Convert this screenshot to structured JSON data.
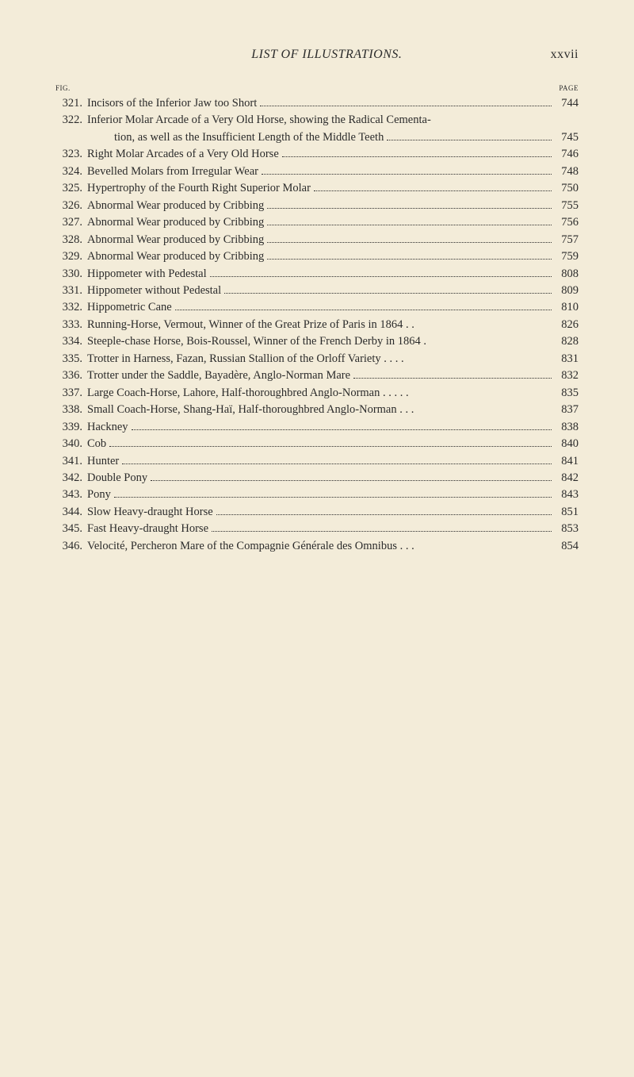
{
  "header": {
    "title": "LIST OF ILLUSTRATIONS.",
    "roman": "xxvii"
  },
  "col": {
    "fig": "FIG.",
    "page": "PAGE"
  },
  "entries": [
    {
      "n": "321.",
      "t": "Incisors of the Inferior Jaw too Short",
      "p": "744"
    },
    {
      "n": "322.",
      "t": "Inferior Molar Arcade of a Very Old Horse, showing the Radical Cementa-",
      "cont": "tion, as well as the Insufficient Length of the Middle Teeth",
      "p": "745"
    },
    {
      "n": "323.",
      "t": "Right Molar Arcades of a Very Old Horse",
      "p": "746"
    },
    {
      "n": "324.",
      "t": "Bevelled Molars from Irregular Wear",
      "p": "748"
    },
    {
      "n": "325.",
      "t": "Hypertrophy of the Fourth Right Superior Molar",
      "p": "750"
    },
    {
      "n": "326.",
      "t": "Abnormal Wear produced by Cribbing",
      "p": "755"
    },
    {
      "n": "327.",
      "t": "Abnormal Wear produced by Cribbing",
      "p": "756"
    },
    {
      "n": "328.",
      "t": "Abnormal Wear produced by Cribbing",
      "p": "757"
    },
    {
      "n": "329.",
      "t": "Abnormal Wear produced by Cribbing",
      "p": "759"
    },
    {
      "n": "330.",
      "t": "Hippometer with Pedestal",
      "p": "808"
    },
    {
      "n": "331.",
      "t": "Hippometer without Pedestal",
      "p": "809"
    },
    {
      "n": "332.",
      "t": "Hippometric Cane",
      "p": "810"
    },
    {
      "n": "333.",
      "t": "Running-Horse, Vermout, Winner of the Great Prize of Paris in 1864 . .",
      "p": "826",
      "nodots": true
    },
    {
      "n": "334.",
      "t": "Steeple-chase Horse, Bois-Roussel, Winner of the French Derby in 1864  .",
      "p": "828",
      "nodots": true
    },
    {
      "n": "335.",
      "t": "Trotter in Harness, Fazan, Russian Stallion of the Orloff Variety  .  .  .  .",
      "p": "831",
      "nodots": true
    },
    {
      "n": "336.",
      "t": "Trotter under the Saddle, Bayadère, Anglo-Norman Mare",
      "p": "832"
    },
    {
      "n": "337.",
      "t": "Large Coach-Horse, Lahore, Half-thoroughbred Anglo-Norman .  .  .  .  .",
      "p": "835",
      "nodots": true
    },
    {
      "n": "338.",
      "t": "Small Coach-Horse, Shang-Haï, Half-thoroughbred Anglo-Norman  .  .  .",
      "p": "837",
      "nodots": true
    },
    {
      "n": "339.",
      "t": "Hackney",
      "p": "838"
    },
    {
      "n": "340.",
      "t": "Cob",
      "p": "840"
    },
    {
      "n": "341.",
      "t": "Hunter",
      "p": "841"
    },
    {
      "n": "342.",
      "t": "Double Pony",
      "p": "842"
    },
    {
      "n": "343.",
      "t": "Pony",
      "p": "843"
    },
    {
      "n": "344.",
      "t": "Slow Heavy-draught Horse",
      "p": "851"
    },
    {
      "n": "345.",
      "t": "Fast Heavy-draught Horse",
      "p": "853"
    },
    {
      "n": "346.",
      "t": "Velocité, Percheron Mare of the Compagnie Générale des Omnibus   .   .   .",
      "p": "854",
      "nodots": true
    }
  ]
}
